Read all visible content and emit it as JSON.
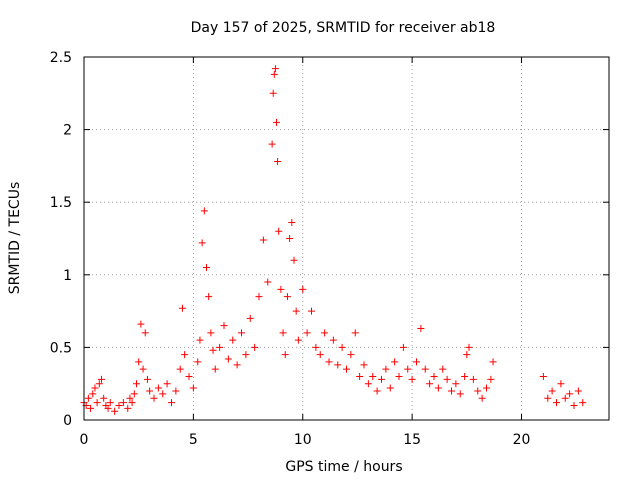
{
  "chart_data": {
    "type": "scatter",
    "title": "Day 157 of 2025, SRMTID for receiver ab18",
    "xlabel": "GPS time / hours",
    "ylabel": "SRMTID / TECUs",
    "xlim": [
      0,
      24.0
    ],
    "ylim": [
      0,
      2.5
    ],
    "xticks": [
      0,
      5,
      10,
      15,
      20
    ],
    "xtick_labels": [
      "0",
      "5",
      "10",
      "15",
      "20"
    ],
    "yticks": [
      0,
      0.5,
      1,
      1.5,
      2,
      2.5
    ],
    "ytick_labels": [
      "0",
      "0.5",
      "1",
      "1.5",
      "2",
      "2.5"
    ],
    "grid": true,
    "marker": "+",
    "color": "#ff0000",
    "series": [
      {
        "name": "SRMTID",
        "points": [
          [
            0.0,
            0.12
          ],
          [
            0.1,
            0.1
          ],
          [
            0.2,
            0.15
          ],
          [
            0.3,
            0.08
          ],
          [
            0.4,
            0.18
          ],
          [
            0.5,
            0.22
          ],
          [
            0.6,
            0.12
          ],
          [
            0.7,
            0.25
          ],
          [
            0.8,
            0.28
          ],
          [
            0.9,
            0.15
          ],
          [
            1.0,
            0.1
          ],
          [
            1.1,
            0.08
          ],
          [
            1.2,
            0.12
          ],
          [
            1.4,
            0.06
          ],
          [
            1.6,
            0.1
          ],
          [
            1.8,
            0.12
          ],
          [
            2.0,
            0.08
          ],
          [
            2.1,
            0.15
          ],
          [
            2.2,
            0.12
          ],
          [
            2.3,
            0.18
          ],
          [
            2.4,
            0.25
          ],
          [
            2.5,
            0.4
          ],
          [
            2.6,
            0.66
          ],
          [
            2.7,
            0.35
          ],
          [
            2.8,
            0.6
          ],
          [
            2.9,
            0.28
          ],
          [
            3.0,
            0.2
          ],
          [
            3.2,
            0.15
          ],
          [
            3.4,
            0.22
          ],
          [
            3.6,
            0.18
          ],
          [
            3.8,
            0.25
          ],
          [
            4.0,
            0.12
          ],
          [
            4.2,
            0.2
          ],
          [
            4.4,
            0.35
          ],
          [
            4.5,
            0.77
          ],
          [
            4.6,
            0.45
          ],
          [
            4.8,
            0.3
          ],
          [
            5.0,
            0.22
          ],
          [
            5.2,
            0.4
          ],
          [
            5.3,
            0.55
          ],
          [
            5.4,
            1.22
          ],
          [
            5.5,
            1.44
          ],
          [
            5.6,
            1.05
          ],
          [
            5.7,
            0.85
          ],
          [
            5.8,
            0.6
          ],
          [
            5.9,
            0.48
          ],
          [
            6.0,
            0.35
          ],
          [
            6.2,
            0.5
          ],
          [
            6.4,
            0.65
          ],
          [
            6.6,
            0.42
          ],
          [
            6.8,
            0.55
          ],
          [
            7.0,
            0.38
          ],
          [
            7.2,
            0.6
          ],
          [
            7.4,
            0.45
          ],
          [
            7.6,
            0.7
          ],
          [
            7.8,
            0.5
          ],
          [
            8.0,
            0.85
          ],
          [
            8.2,
            1.24
          ],
          [
            8.4,
            0.95
          ],
          [
            8.6,
            1.9
          ],
          [
            8.65,
            2.25
          ],
          [
            8.7,
            2.38
          ],
          [
            8.75,
            2.42
          ],
          [
            8.8,
            2.05
          ],
          [
            8.85,
            1.78
          ],
          [
            8.9,
            1.3
          ],
          [
            9.0,
            0.9
          ],
          [
            9.1,
            0.6
          ],
          [
            9.2,
            0.45
          ],
          [
            9.3,
            0.85
          ],
          [
            9.4,
            1.25
          ],
          [
            9.5,
            1.36
          ],
          [
            9.6,
            1.1
          ],
          [
            9.7,
            0.75
          ],
          [
            9.8,
            0.55
          ],
          [
            10.0,
            0.9
          ],
          [
            10.2,
            0.6
          ],
          [
            10.4,
            0.75
          ],
          [
            10.6,
            0.5
          ],
          [
            10.8,
            0.45
          ],
          [
            11.0,
            0.6
          ],
          [
            11.2,
            0.4
          ],
          [
            11.4,
            0.55
          ],
          [
            11.6,
            0.38
          ],
          [
            11.8,
            0.5
          ],
          [
            12.0,
            0.35
          ],
          [
            12.2,
            0.45
          ],
          [
            12.4,
            0.6
          ],
          [
            12.6,
            0.3
          ],
          [
            12.8,
            0.38
          ],
          [
            13.0,
            0.25
          ],
          [
            13.2,
            0.3
          ],
          [
            13.4,
            0.2
          ],
          [
            13.6,
            0.28
          ],
          [
            13.8,
            0.35
          ],
          [
            14.0,
            0.22
          ],
          [
            14.2,
            0.4
          ],
          [
            14.4,
            0.3
          ],
          [
            14.6,
            0.5
          ],
          [
            14.8,
            0.35
          ],
          [
            15.0,
            0.28
          ],
          [
            15.2,
            0.4
          ],
          [
            15.4,
            0.63
          ],
          [
            15.6,
            0.35
          ],
          [
            15.8,
            0.25
          ],
          [
            16.0,
            0.3
          ],
          [
            16.2,
            0.22
          ],
          [
            16.4,
            0.35
          ],
          [
            16.6,
            0.28
          ],
          [
            16.8,
            0.2
          ],
          [
            17.0,
            0.25
          ],
          [
            17.2,
            0.18
          ],
          [
            17.4,
            0.3
          ],
          [
            17.5,
            0.45
          ],
          [
            17.6,
            0.5
          ],
          [
            17.8,
            0.28
          ],
          [
            18.0,
            0.2
          ],
          [
            18.2,
            0.15
          ],
          [
            18.4,
            0.22
          ],
          [
            18.6,
            0.28
          ],
          [
            18.7,
            0.4
          ],
          [
            21.0,
            0.3
          ],
          [
            21.2,
            0.15
          ],
          [
            21.4,
            0.2
          ],
          [
            21.6,
            0.12
          ],
          [
            21.8,
            0.25
          ],
          [
            22.0,
            0.15
          ],
          [
            22.2,
            0.18
          ],
          [
            22.4,
            0.1
          ],
          [
            22.6,
            0.2
          ],
          [
            22.8,
            0.12
          ]
        ]
      }
    ]
  }
}
